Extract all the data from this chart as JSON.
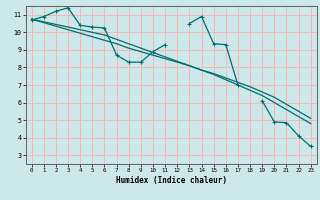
{
  "background_color": "#cce8e8",
  "grid_color": "#f5b8b8",
  "line_color": "#007070",
  "x_label": "Humidex (Indice chaleur)",
  "xlim": [
    -0.5,
    23.5
  ],
  "ylim": [
    2.5,
    11.5
  ],
  "xticks": [
    0,
    1,
    2,
    3,
    4,
    5,
    6,
    7,
    8,
    9,
    10,
    11,
    12,
    13,
    14,
    15,
    16,
    17,
    18,
    19,
    20,
    21,
    22,
    23
  ],
  "yticks": [
    3,
    4,
    5,
    6,
    7,
    8,
    9,
    10,
    11
  ],
  "series1": [
    10.7,
    10.9,
    11.2,
    11.4,
    10.4,
    10.3,
    10.25,
    8.7,
    8.3,
    8.3,
    8.9,
    9.3,
    null,
    10.5,
    10.9,
    9.35,
    9.3,
    7.0,
    null,
    6.1,
    4.9,
    4.85,
    4.1,
    3.5
  ],
  "linear1": [
    10.75,
    10.55,
    10.35,
    10.15,
    9.95,
    9.75,
    9.55,
    9.35,
    9.1,
    8.9,
    8.7,
    8.5,
    8.3,
    8.1,
    7.85,
    7.65,
    7.4,
    7.15,
    6.9,
    6.6,
    6.3,
    5.9,
    5.5,
    5.1
  ],
  "linear2": [
    10.75,
    10.6,
    10.45,
    10.3,
    10.15,
    10.0,
    9.85,
    9.6,
    9.35,
    9.1,
    8.85,
    8.6,
    8.35,
    8.1,
    7.85,
    7.6,
    7.3,
    7.0,
    6.7,
    6.4,
    6.0,
    5.6,
    5.2,
    4.8
  ]
}
